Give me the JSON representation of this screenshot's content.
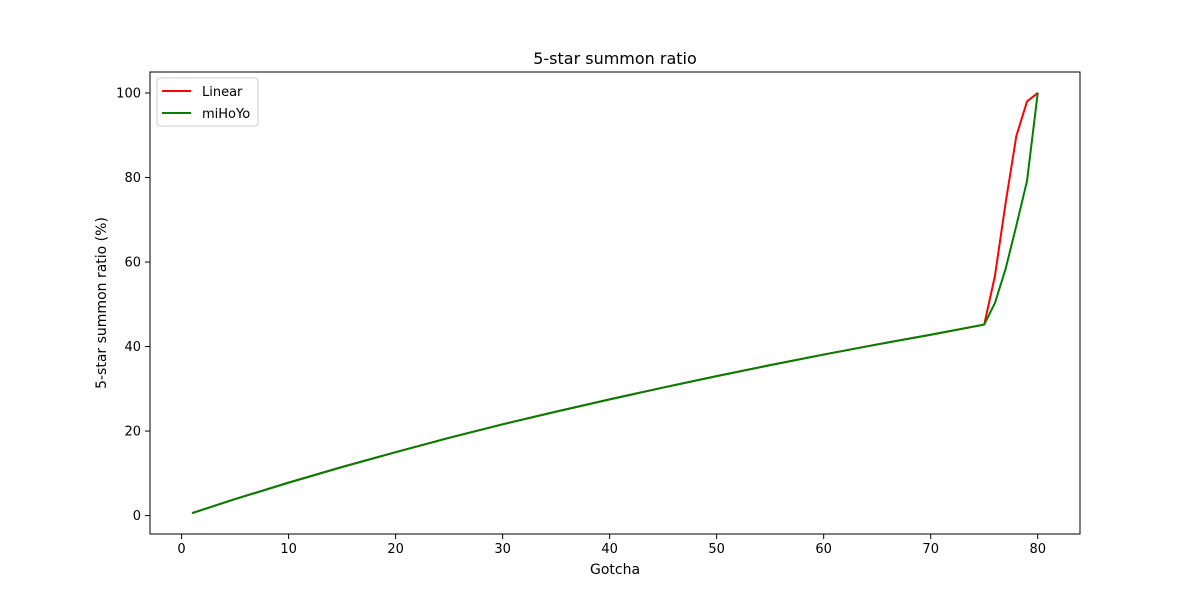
{
  "chart_data": {
    "type": "line",
    "title": "5-star summon ratio",
    "xlabel": "Gotcha",
    "ylabel": "5-star summon ratio (%)",
    "xlim": [
      -2.95,
      83.95
    ],
    "ylim": [
      -4.36,
      104.97
    ],
    "xticks": [
      0,
      10,
      20,
      30,
      40,
      50,
      60,
      70,
      80
    ],
    "yticks": [
      0,
      20,
      40,
      60,
      80,
      100
    ],
    "grid": false,
    "legend_position": "top-left",
    "series": [
      {
        "name": "Linear",
        "color": "#ff0000",
        "x": [
          1,
          5,
          10,
          15,
          20,
          25,
          30,
          35,
          40,
          45,
          50,
          55,
          60,
          65,
          70,
          75,
          76,
          77,
          78,
          79,
          80
        ],
        "y": [
          0.6,
          3.9,
          7.8,
          11.5,
          15.0,
          18.4,
          21.6,
          24.6,
          27.5,
          30.3,
          33.0,
          35.6,
          38.1,
          40.5,
          42.8,
          45.2,
          56.7,
          74.0,
          89.8,
          98.0,
          100.0
        ]
      },
      {
        "name": "miHoYo",
        "color": "#008000",
        "x": [
          1,
          5,
          10,
          15,
          20,
          25,
          30,
          35,
          40,
          45,
          50,
          55,
          60,
          65,
          70,
          75,
          76,
          77,
          78,
          79,
          80
        ],
        "y": [
          0.6,
          3.9,
          7.8,
          11.5,
          15.0,
          18.4,
          21.6,
          24.6,
          27.5,
          30.3,
          33.0,
          35.6,
          38.1,
          40.5,
          42.8,
          45.2,
          50.3,
          58.4,
          68.6,
          79.2,
          100.0
        ]
      }
    ]
  }
}
